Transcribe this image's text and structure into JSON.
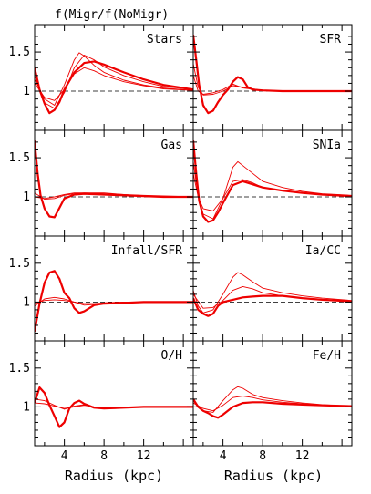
{
  "figure": {
    "title": "f(Migr/f(NoMigr)",
    "xlabel": "Radius (kpc)",
    "x_ticks": [
      4,
      8,
      12
    ],
    "y_ticks": [
      1,
      1.5
    ],
    "y_tick_labels": [
      "1",
      "1.5"
    ]
  },
  "colors": {
    "series": "#ee0000",
    "axes": "#000000",
    "reference": "#000000"
  },
  "chart_data": [
    {
      "type": "line",
      "label": "Stars",
      "row": 0,
      "col": 0,
      "xlim": [
        1,
        17
      ],
      "ylim": [
        0.5,
        1.85
      ],
      "reference_line": 1,
      "series": [
        {
          "x": [
            1,
            1.5,
            2,
            2.5,
            3,
            3.5,
            4,
            5,
            6,
            7,
            8,
            10,
            12,
            14,
            17
          ],
          "y": [
            1.3,
            1.02,
            0.84,
            0.72,
            0.76,
            0.86,
            1.02,
            1.24,
            1.36,
            1.38,
            1.34,
            1.24,
            1.15,
            1.08,
            1.02
          ]
        },
        {
          "x": [
            1,
            2,
            3,
            4,
            5,
            6,
            7,
            8,
            10,
            12,
            14,
            17
          ],
          "y": [
            1.2,
            0.85,
            0.78,
            0.98,
            1.3,
            1.46,
            1.4,
            1.31,
            1.2,
            1.12,
            1.06,
            1.02
          ]
        },
        {
          "x": [
            1,
            2,
            3,
            4,
            5,
            5.5,
            6,
            7,
            8,
            10,
            12,
            14,
            17
          ],
          "y": [
            1.15,
            0.9,
            0.82,
            1.08,
            1.4,
            1.49,
            1.45,
            1.33,
            1.24,
            1.14,
            1.08,
            1.04,
            1.01
          ]
        },
        {
          "x": [
            1,
            2,
            3,
            4,
            5,
            6,
            7,
            8,
            10,
            12,
            14,
            17
          ],
          "y": [
            1.1,
            0.92,
            0.88,
            1.02,
            1.22,
            1.3,
            1.26,
            1.2,
            1.12,
            1.07,
            1.03,
            1.01
          ]
        }
      ]
    },
    {
      "type": "line",
      "label": "SFR",
      "row": 0,
      "col": 1,
      "xlim": [
        1,
        17
      ],
      "ylim": [
        0.5,
        1.85
      ],
      "reference_line": 1,
      "series": [
        {
          "x": [
            1,
            1.3,
            1.6,
            2,
            2.5,
            3,
            3.5,
            4,
            4.5,
            5,
            5.5,
            6,
            6.5,
            7,
            8,
            10,
            12,
            14,
            17
          ],
          "y": [
            1.72,
            1.4,
            1.08,
            0.82,
            0.72,
            0.75,
            0.86,
            0.95,
            1.02,
            1.12,
            1.18,
            1.15,
            1.05,
            1.02,
            1.01,
            1.0,
            1.0,
            1.0,
            1.0
          ]
        },
        {
          "x": [
            1,
            1.5,
            2,
            3,
            4,
            5,
            6,
            8,
            12,
            17
          ],
          "y": [
            1.35,
            1.05,
            0.95,
            0.96,
            1.0,
            1.07,
            1.05,
            1.01,
            1.0,
            1.0
          ]
        },
        {
          "x": [
            1,
            1.5,
            2,
            3,
            4,
            5,
            6,
            8,
            12,
            17
          ],
          "y": [
            1.2,
            1.0,
            0.96,
            0.98,
            1.02,
            1.09,
            1.04,
            1.01,
            1.0,
            1.0
          ]
        }
      ]
    },
    {
      "type": "line",
      "label": "Gas",
      "row": 1,
      "col": 0,
      "xlim": [
        1,
        17
      ],
      "ylim": [
        0.5,
        1.85
      ],
      "reference_line": 1,
      "series": [
        {
          "x": [
            1,
            1.3,
            1.6,
            2,
            2.5,
            3,
            3.5,
            4,
            5,
            6,
            8,
            10,
            12,
            14,
            17
          ],
          "y": [
            1.72,
            1.3,
            1.02,
            0.85,
            0.75,
            0.74,
            0.86,
            0.98,
            1.03,
            1.04,
            1.03,
            1.02,
            1.01,
            1.0,
            1.0
          ]
        },
        {
          "x": [
            1,
            2,
            3,
            4,
            5,
            6,
            8,
            10,
            12,
            17
          ],
          "y": [
            1.05,
            0.97,
            0.98,
            1.02,
            1.04,
            1.05,
            1.04,
            1.03,
            1.01,
            1.0
          ]
        },
        {
          "x": [
            1,
            2,
            3,
            4,
            5,
            6,
            8,
            10,
            12,
            17
          ],
          "y": [
            1.0,
            0.98,
            1.0,
            1.03,
            1.05,
            1.05,
            1.05,
            1.03,
            1.02,
            1.0
          ]
        }
      ]
    },
    {
      "type": "line",
      "label": "SNIa",
      "row": 1,
      "col": 1,
      "xlim": [
        1,
        17
      ],
      "ylim": [
        0.5,
        1.85
      ],
      "reference_line": 1,
      "series": [
        {
          "x": [
            1,
            1.3,
            1.6,
            2,
            2.5,
            3,
            3.5,
            4,
            5,
            6,
            7,
            8,
            10,
            12,
            14,
            17
          ],
          "y": [
            1.72,
            1.3,
            0.95,
            0.75,
            0.68,
            0.7,
            0.8,
            0.92,
            1.15,
            1.2,
            1.16,
            1.12,
            1.08,
            1.05,
            1.03,
            1.01
          ]
        },
        {
          "x": [
            1,
            1.5,
            2,
            3,
            4,
            5,
            5.5,
            6,
            7,
            8,
            10,
            12,
            14,
            17
          ],
          "y": [
            1.45,
            1.0,
            0.78,
            0.72,
            0.98,
            1.38,
            1.45,
            1.4,
            1.3,
            1.2,
            1.12,
            1.07,
            1.04,
            1.02
          ]
        },
        {
          "x": [
            1,
            1.5,
            2,
            3,
            4,
            5,
            6,
            7,
            8,
            10,
            12,
            14,
            17
          ],
          "y": [
            1.3,
            1.0,
            0.85,
            0.82,
            0.98,
            1.2,
            1.22,
            1.18,
            1.12,
            1.08,
            1.05,
            1.03,
            1.01
          ]
        }
      ]
    },
    {
      "type": "line",
      "label": "Infall/SFR",
      "row": 2,
      "col": 0,
      "xlim": [
        1,
        17
      ],
      "ylim": [
        0.5,
        1.85
      ],
      "reference_line": 1,
      "series": [
        {
          "x": [
            1,
            1.5,
            2,
            2.5,
            3,
            3.5,
            4,
            4.5,
            5,
            5.5,
            6,
            7,
            8,
            10,
            12,
            14,
            17
          ],
          "y": [
            0.62,
            0.98,
            1.25,
            1.38,
            1.4,
            1.3,
            1.12,
            1.05,
            0.92,
            0.86,
            0.88,
            0.96,
            0.98,
            0.99,
            1.0,
            1.0,
            1.0
          ]
        },
        {
          "x": [
            1,
            2,
            3,
            4,
            5,
            6,
            7,
            8,
            10,
            12,
            17
          ],
          "y": [
            0.95,
            1.04,
            1.06,
            1.04,
            1.0,
            0.96,
            0.97,
            0.99,
            1.0,
            1.0,
            1.0
          ]
        },
        {
          "x": [
            1,
            2,
            3,
            4,
            5,
            6,
            7,
            8,
            10,
            12,
            17
          ],
          "y": [
            0.98,
            1.02,
            1.03,
            1.02,
            1.0,
            0.98,
            0.98,
            0.99,
            1.0,
            1.0,
            1.0
          ]
        }
      ]
    },
    {
      "type": "line",
      "label": "Ia/CC",
      "row": 2,
      "col": 1,
      "xlim": [
        1,
        17
      ],
      "ylim": [
        0.5,
        1.85
      ],
      "reference_line": 1,
      "series": [
        {
          "x": [
            1,
            1.5,
            2,
            2.5,
            3,
            3.5,
            4,
            5,
            6,
            7,
            8,
            10,
            12,
            14,
            17
          ],
          "y": [
            1.05,
            0.9,
            0.85,
            0.82,
            0.85,
            0.95,
            1.0,
            1.03,
            1.06,
            1.07,
            1.08,
            1.08,
            1.05,
            1.03,
            1.01
          ]
        },
        {
          "x": [
            1,
            1.5,
            2,
            3,
            4,
            5,
            5.5,
            6,
            7,
            8,
            10,
            12,
            14,
            17
          ],
          "y": [
            1.15,
            0.95,
            0.86,
            0.9,
            1.1,
            1.32,
            1.38,
            1.35,
            1.26,
            1.18,
            1.12,
            1.08,
            1.05,
            1.02
          ]
        },
        {
          "x": [
            1,
            2,
            3,
            4,
            5,
            6,
            7,
            8,
            10,
            12,
            14,
            17
          ],
          "y": [
            1.1,
            0.92,
            0.93,
            1.02,
            1.15,
            1.2,
            1.17,
            1.12,
            1.08,
            1.05,
            1.03,
            1.01
          ]
        }
      ]
    },
    {
      "type": "line",
      "label": "O/H",
      "row": 3,
      "col": 0,
      "xlim": [
        1,
        17
      ],
      "ylim": [
        0.5,
        1.85
      ],
      "reference_line": 1,
      "series": [
        {
          "x": [
            1,
            1.5,
            2,
            2.5,
            3,
            3.5,
            4,
            4.5,
            5,
            5.5,
            6,
            7,
            8,
            10,
            12,
            14,
            17
          ],
          "y": [
            1.05,
            1.25,
            1.18,
            1.02,
            0.88,
            0.74,
            0.8,
            0.98,
            1.05,
            1.08,
            1.04,
            0.99,
            0.98,
            0.99,
            1.0,
            1.0,
            1.0
          ]
        },
        {
          "x": [
            1,
            2,
            3,
            4,
            5,
            6,
            7,
            8,
            10,
            12,
            17
          ],
          "y": [
            1.1,
            1.08,
            1.02,
            0.97,
            1.01,
            1.03,
            1.0,
            0.99,
            1.0,
            1.0,
            1.0
          ]
        },
        {
          "x": [
            1,
            2,
            3,
            4,
            5,
            6,
            7,
            8,
            10,
            12,
            17
          ],
          "y": [
            1.05,
            1.04,
            1.01,
            0.98,
            1.0,
            1.02,
            1.0,
            0.99,
            1.0,
            1.0,
            1.0
          ]
        }
      ]
    },
    {
      "type": "line",
      "label": "Fe/H",
      "row": 3,
      "col": 1,
      "xlim": [
        1,
        17
      ],
      "ylim": [
        0.5,
        1.85
      ],
      "reference_line": 1,
      "series": [
        {
          "x": [
            1,
            1.5,
            2,
            2.5,
            3,
            3.5,
            4,
            5,
            6,
            7,
            8,
            10,
            12,
            14,
            17
          ],
          "y": [
            1.1,
            1.0,
            0.95,
            0.92,
            0.88,
            0.86,
            0.9,
            1.0,
            1.05,
            1.06,
            1.06,
            1.04,
            1.03,
            1.02,
            1.01
          ]
        },
        {
          "x": [
            1,
            1.5,
            2,
            3,
            4,
            5,
            5.5,
            6,
            7,
            8,
            10,
            12,
            14,
            17
          ],
          "y": [
            1.08,
            1.0,
            0.95,
            0.93,
            1.08,
            1.22,
            1.26,
            1.24,
            1.16,
            1.12,
            1.08,
            1.05,
            1.03,
            1.01
          ]
        },
        {
          "x": [
            1,
            2,
            3,
            4,
            5,
            6,
            7,
            8,
            10,
            12,
            14,
            17
          ],
          "y": [
            1.05,
            0.98,
            0.95,
            1.02,
            1.12,
            1.14,
            1.12,
            1.09,
            1.06,
            1.04,
            1.02,
            1.01
          ]
        }
      ]
    }
  ]
}
